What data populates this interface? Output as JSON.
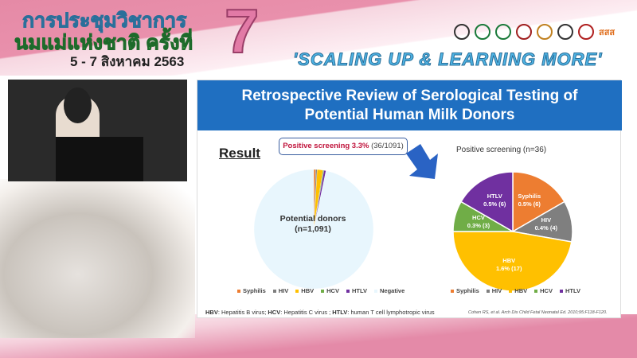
{
  "banner": {
    "thai_line1": "การประชุมวิชาการ",
    "thai_line2": "นมแม่แห่งชาติ ครั้งที่",
    "edition": "7",
    "date": "5 - 7 สิงหาคม 2563",
    "slogan": "'SCALING UP & LEARNING MORE'",
    "logo_text": "สสส"
  },
  "slide": {
    "title_line1": "Retrospective Review of Serological Testing of",
    "title_line2": "Potential Human Milk Donors",
    "result_heading": "Result",
    "callout_bold": "Positive screening 3.3%",
    "callout_rest": "(36/1091)",
    "left_pie_label1": "Potential donors",
    "left_pie_label2": "(n=1,091)",
    "footnote": {
      "hbv_abbr": "HBV",
      "hbv": ": Hepatitis B virus; ",
      "hcv_abbr": "HCV",
      "hcv": ": Hepatitis C virus ; ",
      "htlv_abbr": "HTLV",
      "htlv": ": human T cell lymphotropic virus"
    },
    "citation": "Cohen RS, et al. Arch Dis Child Fetal Neonatal Ed. 2010;95:F118-F120.",
    "arrow_color": "#2a63c4"
  },
  "chart_data": [
    {
      "type": "pie",
      "categories": [
        "Syphilis",
        "HIV",
        "HBV",
        "HCV",
        "HTLV",
        "Negative"
      ],
      "values": [
        6,
        4,
        17,
        3,
        6,
        1055
      ],
      "colors": [
        "#ed7d31",
        "#7f7f7f",
        "#ffc000",
        "#70ad47",
        "#7030a0",
        "#e8f6fd"
      ],
      "legend": "bottom",
      "center_label": "Potential donors (n=1,091)"
    },
    {
      "type": "pie",
      "title": "Positive screening (n=36)",
      "categories": [
        "Syphilis",
        "HIV",
        "HBV",
        "HCV",
        "HTLV"
      ],
      "values": [
        6,
        4,
        17,
        3,
        6
      ],
      "labels": [
        "0.5% (6)",
        "0.4% (4)",
        "1.6% (17)",
        "0.3% (3)",
        "0.5% (6)"
      ],
      "colors": [
        "#ed7d31",
        "#7f7f7f",
        "#ffc000",
        "#70ad47",
        "#7030a0"
      ],
      "legend": "bottom"
    }
  ]
}
